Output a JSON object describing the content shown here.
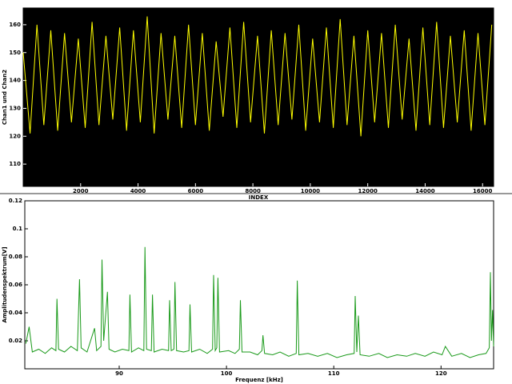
{
  "chart_data": [
    {
      "type": "line",
      "ylabel": "Chan1 und Chan2",
      "xlabel": "INDEX",
      "color": "#ffff00",
      "background": "#000000",
      "xlim": [
        0,
        16384
      ],
      "ylim": [
        102,
        166
      ],
      "xticks": [
        2000,
        4000,
        6000,
        8000,
        10000,
        12000,
        14000,
        16000
      ],
      "yticks": [
        110,
        120,
        130,
        140,
        150,
        160
      ],
      "x": [
        0,
        240,
        480,
        720,
        960,
        1200,
        1440,
        1680,
        1920,
        2160,
        2400,
        2640,
        2880,
        3120,
        3360,
        3600,
        3840,
        4080,
        4320,
        4560,
        4800,
        5040,
        5280,
        5520,
        5760,
        6000,
        6240,
        6480,
        6720,
        6960,
        7200,
        7440,
        7680,
        7920,
        8160,
        8400,
        8640,
        8880,
        9120,
        9360,
        9600,
        9840,
        10080,
        10320,
        10560,
        10800,
        11040,
        11280,
        11520,
        11760,
        12000,
        12240,
        12480,
        12720,
        12960,
        13200,
        13440,
        13680,
        13920,
        14160,
        14400,
        14640,
        14880,
        15120,
        15360,
        15600,
        15840,
        16080,
        16320
      ],
      "values": [
        150,
        121,
        160,
        124,
        158,
        122,
        157,
        125,
        155,
        123,
        161,
        124,
        156,
        126,
        159,
        122,
        158,
        125,
        163,
        121,
        157,
        126,
        156,
        123,
        160,
        124,
        157,
        122,
        154,
        127,
        159,
        123,
        161,
        125,
        156,
        121,
        158,
        124,
        157,
        126,
        160,
        122,
        155,
        125,
        159,
        123,
        162,
        124,
        156,
        120,
        158,
        125,
        157,
        123,
        160,
        126,
        155,
        122,
        159,
        124,
        161,
        123,
        156,
        125,
        158,
        122,
        157,
        124,
        160
      ]
    },
    {
      "type": "line",
      "ylabel": "Amplitudenspektrum[V]",
      "xlabel": "Frequenz [kHz]",
      "color": "#1a9a1a",
      "background": "#ffffff",
      "xlim": [
        81.2,
        124.9
      ],
      "ylim": [
        0,
        0.12
      ],
      "xticks": [
        90,
        100,
        110,
        120
      ],
      "yticks": [
        0.02,
        0.04,
        0.06,
        0.08,
        0.1,
        0.12
      ],
      "x": [
        81.3,
        81.6,
        81.9,
        82.5,
        83.1,
        83.7,
        84.1,
        84.2,
        84.35,
        84.9,
        85.5,
        86.1,
        86.3,
        86.45,
        87.0,
        87.7,
        87.9,
        88.3,
        88.4,
        88.55,
        88.9,
        89.05,
        89.6,
        90.3,
        90.9,
        91.0,
        91.15,
        91.8,
        92.3,
        92.4,
        92.55,
        93.0,
        93.1,
        93.25,
        94.0,
        94.6,
        94.7,
        94.85,
        95.1,
        95.2,
        95.35,
        96.0,
        96.5,
        96.6,
        96.75,
        97.5,
        98.2,
        98.7,
        98.8,
        98.95,
        99.1,
        99.2,
        99.35,
        100.2,
        100.8,
        101.2,
        101.3,
        101.45,
        102.2,
        102.9,
        103.3,
        103.4,
        103.55,
        104.3,
        105.0,
        105.8,
        106.5,
        106.6,
        106.75,
        107.6,
        108.5,
        109.4,
        110.3,
        111.2,
        111.9,
        112.0,
        112.15,
        112.3,
        112.45,
        113.3,
        114.2,
        115.0,
        115.9,
        116.8,
        117.6,
        118.5,
        119.3,
        120.1,
        120.4,
        121.0,
        121.9,
        122.7,
        123.5,
        124.2,
        124.5,
        124.6,
        124.7,
        124.8,
        124.9
      ],
      "values": [
        0.018,
        0.03,
        0.012,
        0.014,
        0.011,
        0.015,
        0.013,
        0.05,
        0.014,
        0.012,
        0.016,
        0.013,
        0.064,
        0.015,
        0.012,
        0.029,
        0.013,
        0.016,
        0.078,
        0.02,
        0.055,
        0.014,
        0.012,
        0.014,
        0.013,
        0.053,
        0.012,
        0.015,
        0.013,
        0.087,
        0.014,
        0.013,
        0.053,
        0.012,
        0.014,
        0.013,
        0.049,
        0.013,
        0.014,
        0.062,
        0.013,
        0.012,
        0.013,
        0.046,
        0.012,
        0.014,
        0.011,
        0.014,
        0.067,
        0.013,
        0.015,
        0.065,
        0.012,
        0.013,
        0.011,
        0.014,
        0.049,
        0.012,
        0.012,
        0.01,
        0.013,
        0.024,
        0.011,
        0.01,
        0.012,
        0.009,
        0.011,
        0.063,
        0.01,
        0.011,
        0.009,
        0.011,
        0.008,
        0.01,
        0.011,
        0.052,
        0.012,
        0.038,
        0.01,
        0.009,
        0.011,
        0.008,
        0.01,
        0.009,
        0.011,
        0.009,
        0.012,
        0.01,
        0.016,
        0.009,
        0.011,
        0.008,
        0.01,
        0.011,
        0.015,
        0.069,
        0.02,
        0.042,
        0.016
      ]
    }
  ]
}
